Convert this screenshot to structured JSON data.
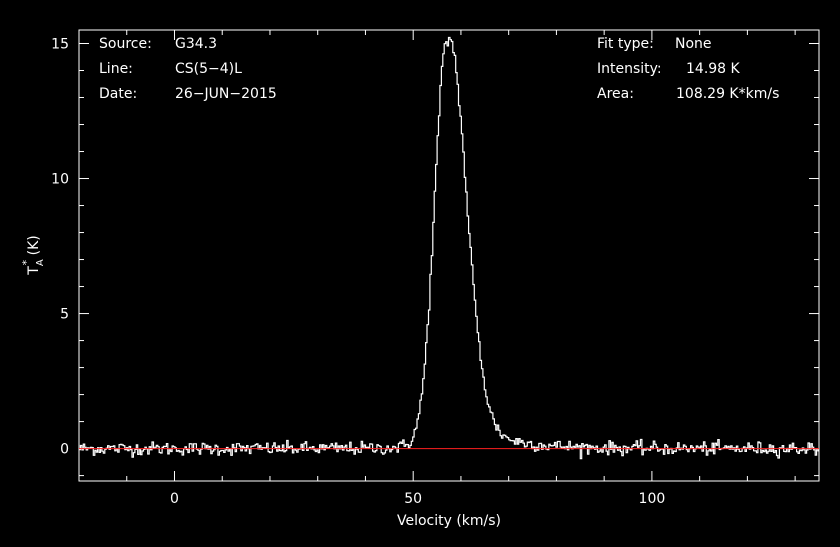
{
  "header_left": {
    "source_label": "Source:",
    "source_value": "G34.3",
    "line_label": "Line:",
    "line_value": "CS(5−4)L",
    "date_label": "Date:",
    "date_value": "26−JUN−2015"
  },
  "header_right": {
    "fit_label": "Fit type:",
    "fit_value": "None",
    "intensity_label": "Intensity:",
    "intensity_value": "14.98 K",
    "area_label": "Area:",
    "area_value": "108.29 K*km/s"
  },
  "chart_data": {
    "type": "line",
    "xlabel": "Velocity (km/s)",
    "ylabel_main": "T",
    "ylabel_sup": "*",
    "ylabel_sub": "A",
    "ylabel_unit": " (K)",
    "xlim": [
      -20,
      135
    ],
    "ylim": [
      -1.2,
      15.5
    ],
    "xticks": [
      0,
      50,
      100
    ],
    "yticks": [
      0,
      5,
      10,
      15
    ],
    "xtick_labels": [
      "0",
      "50",
      "100"
    ],
    "ytick_labels": [
      "0",
      "5",
      "10",
      "15"
    ],
    "peak_velocity": 57,
    "peak_intensity": 14.98,
    "noise_rms": 0.12,
    "baseline": 0,
    "colors": {
      "spectrum": "#ffffff",
      "baseline": "#ff2020",
      "axes": "#ffffff",
      "background": "#000000"
    }
  }
}
